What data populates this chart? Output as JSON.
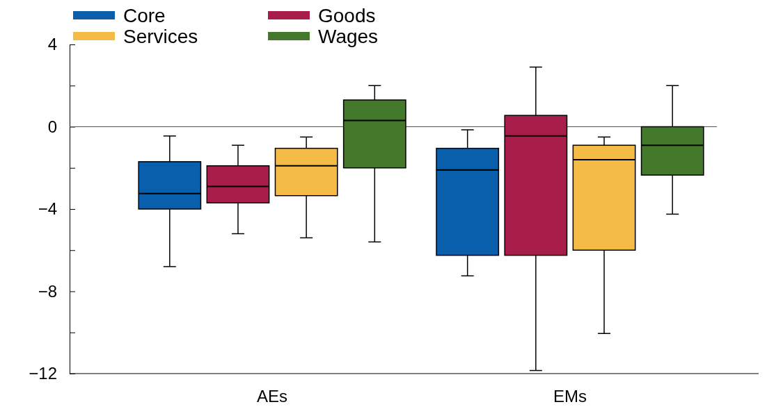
{
  "chart_data": {
    "type": "box",
    "categories": [
      "AEs",
      "EMs"
    ],
    "series": [
      {
        "name": "Core",
        "color": "#0a5fad",
        "boxes": [
          {
            "low": -6.8,
            "q1": -4.0,
            "median": -3.25,
            "q3": -1.7,
            "high": -0.45
          },
          {
            "low": -7.25,
            "q1": -6.25,
            "median": -2.1,
            "q3": -1.05,
            "high": -0.15
          }
        ]
      },
      {
        "name": "Goods",
        "color": "#a81d4a",
        "boxes": [
          {
            "low": -5.2,
            "q1": -3.7,
            "median": -2.9,
            "q3": -1.9,
            "high": -0.9
          },
          {
            "low": -11.85,
            "q1": -6.25,
            "median": -0.45,
            "q3": 0.55,
            "high": 2.9
          }
        ]
      },
      {
        "name": "Services",
        "color": "#f4bb47",
        "boxes": [
          {
            "low": -5.4,
            "q1": -3.35,
            "median": -1.9,
            "q3": -1.05,
            "high": -0.5
          },
          {
            "low": -10.05,
            "q1": -6.0,
            "median": -1.6,
            "q3": -0.9,
            "high": -0.5
          }
        ]
      },
      {
        "name": "Wages",
        "color": "#44782a",
        "boxes": [
          {
            "low": -5.6,
            "q1": -2.0,
            "median": 0.3,
            "q3": 1.3,
            "high": 2.0
          },
          {
            "low": -4.25,
            "q1": -2.35,
            "median": -0.9,
            "q3": 0.0,
            "high": 2.0
          }
        ]
      }
    ],
    "ylim": [
      -12,
      4
    ],
    "yticks": [
      {
        "value": -12,
        "label": "−12"
      },
      {
        "value": -10,
        "label": null
      },
      {
        "value": -8,
        "label": "−8"
      },
      {
        "value": -6,
        "label": null
      },
      {
        "value": -4,
        "label": "−4"
      },
      {
        "value": -2,
        "label": null
      },
      0,
      {
        "value": 2,
        "label": null
      },
      4
    ],
    "ref_lines": [
      {
        "axis": "y",
        "value": 0,
        "color": "#555555"
      }
    ],
    "legend": "top left",
    "grid": false
  }
}
